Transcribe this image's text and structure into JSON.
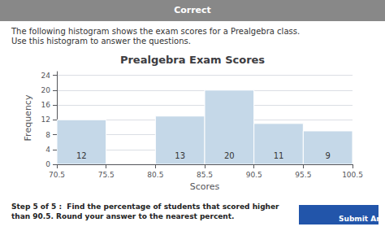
{
  "chart_data": {
    "type": "histogram",
    "title": "Prealgebra Exam Scores",
    "xlabel": "Scores",
    "ylabel": "Frequency",
    "bins": [
      70.5,
      75.5,
      80.5,
      85.5,
      90.5,
      95.5,
      100.5
    ],
    "values": [
      12,
      0,
      13,
      20,
      11,
      9
    ],
    "color": "#c5d8e8",
    "xlim": [
      70.5,
      100.5
    ],
    "xticks": [
      70.5,
      75.5,
      80.5,
      85.5,
      90.5,
      95.5,
      100.5
    ],
    "ylim": [
      0,
      25
    ],
    "yticks": [
      0,
      4,
      8,
      12,
      16,
      20,
      24
    ],
    "grid": true,
    "data_labels": true,
    "annotations": [
      "Correct",
      "The following histogram shows the exam scores for a Prealgebra class. Use this histogram to answer the questions.",
      "Step 5 of 5 :  Find the percentage of students that scored higher than 90.5. Round your answer to the nearest percent.",
      "Submit Answer"
    ]
  }
}
